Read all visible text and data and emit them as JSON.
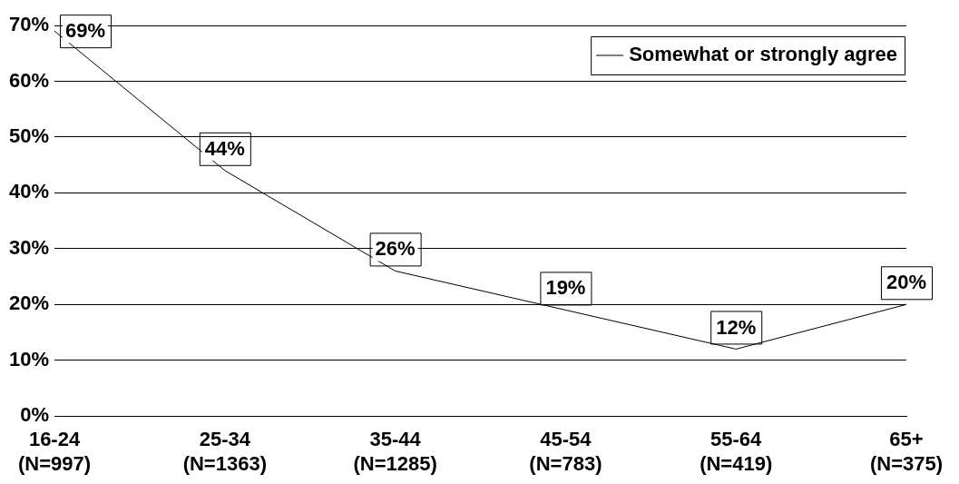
{
  "chart_data": {
    "type": "line",
    "categories": [
      "16-24\n(N=997)",
      "25-34\n(N=1363)",
      "35-44\n(N=1285)",
      "45-54\n(N=783)",
      "55-64\n(N=419)",
      "65+\n(N=375)"
    ],
    "series": [
      {
        "name": "Somewhat or strongly agree",
        "color": "#000000",
        "values": [
          69,
          44,
          26,
          19,
          12,
          20
        ]
      }
    ],
    "ylim": [
      0,
      70
    ],
    "yticks": [
      {
        "value": 0,
        "label": "0%"
      },
      {
        "value": 10,
        "label": "10%"
      },
      {
        "value": 20,
        "label": "20%"
      },
      {
        "value": 30,
        "label": "30%"
      },
      {
        "value": 40,
        "label": "40%"
      },
      {
        "value": 50,
        "label": "50%"
      },
      {
        "value": 60,
        "label": "60%"
      },
      {
        "value": 70,
        "label": "70%"
      }
    ],
    "value_labels": [
      "69%",
      "44%",
      "26%",
      "19%",
      "12%",
      "20%"
    ],
    "grid": "y",
    "legend": "top right",
    "marker": "none",
    "line_style": "solid"
  }
}
